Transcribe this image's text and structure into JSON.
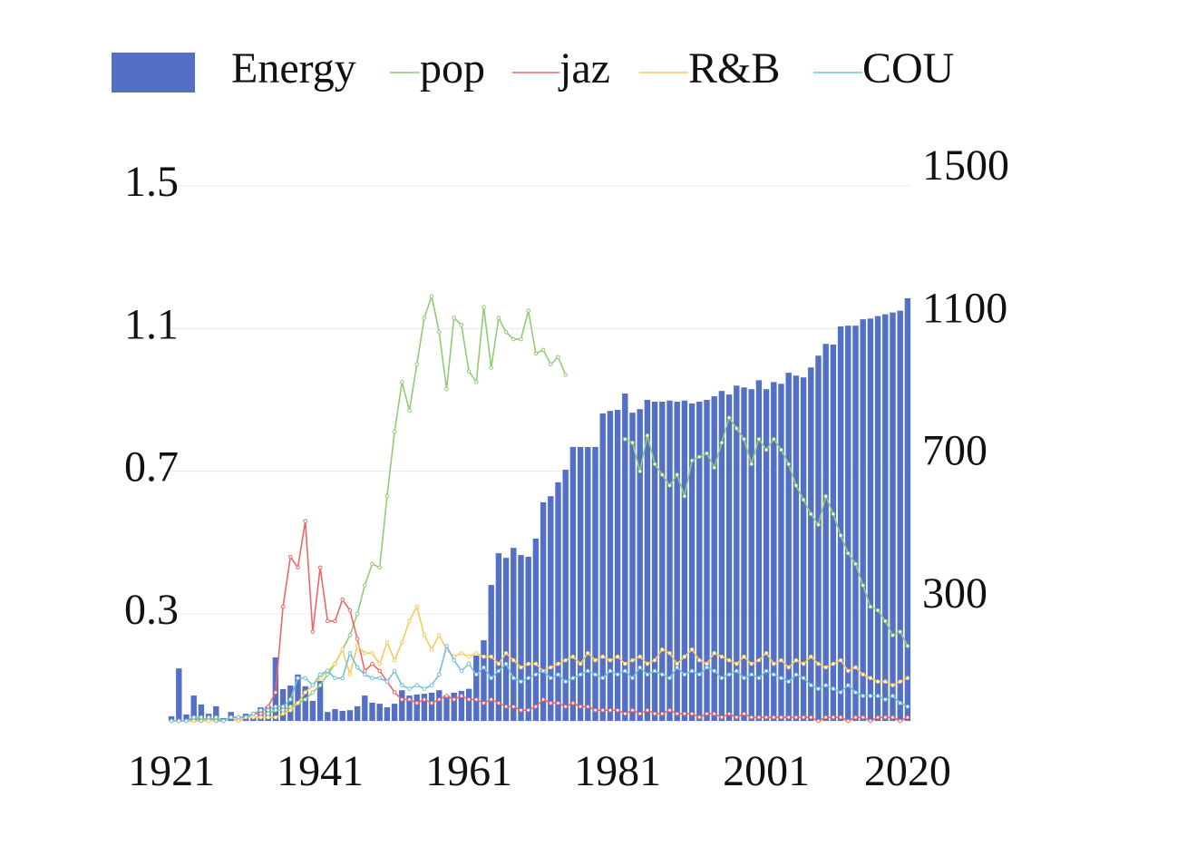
{
  "chart_data": {
    "type": "combo",
    "x": [
      1921,
      1922,
      1923,
      1924,
      1925,
      1926,
      1927,
      1928,
      1929,
      1930,
      1931,
      1932,
      1933,
      1934,
      1935,
      1936,
      1937,
      1938,
      1939,
      1940,
      1941,
      1942,
      1943,
      1944,
      1945,
      1946,
      1947,
      1948,
      1949,
      1950,
      1951,
      1952,
      1953,
      1954,
      1955,
      1956,
      1957,
      1958,
      1959,
      1960,
      1961,
      1962,
      1963,
      1964,
      1965,
      1966,
      1967,
      1968,
      1969,
      1970,
      1971,
      1972,
      1973,
      1974,
      1975,
      1976,
      1977,
      1978,
      1979,
      1980,
      1981,
      1982,
      1983,
      1984,
      1985,
      1986,
      1987,
      1988,
      1989,
      1990,
      1991,
      1992,
      1993,
      1994,
      1995,
      1996,
      1997,
      1998,
      1999,
      2000,
      2001,
      2002,
      2003,
      2004,
      2005,
      2006,
      2007,
      2008,
      2009,
      2010,
      2011,
      2012,
      2013,
      2014,
      2015,
      2016,
      2017,
      2018,
      2019,
      2020
    ],
    "xlim": [
      1920.5,
      2020.5
    ],
    "xticks": [
      1921,
      1941,
      1961,
      1981,
      2001,
      2020
    ],
    "ylim": [
      0,
      1.5
    ],
    "yticks": [
      0.3,
      0.7,
      1.1,
      1.5
    ],
    "y2lim": [
      0,
      1500
    ],
    "y2ticks": [
      300,
      700,
      1100,
      1500
    ],
    "grid": true,
    "legend": "top",
    "series": [
      {
        "name": "Energy",
        "type": "bar",
        "axis": "y2",
        "color": "#5470c6",
        "values": [
          13,
          147,
          18,
          71,
          46,
          20,
          41,
          8,
          25,
          5,
          20,
          8,
          38,
          41,
          178,
          89,
          99,
          130,
          97,
          56,
          112,
          25,
          33,
          28,
          30,
          41,
          71,
          51,
          48,
          38,
          48,
          86,
          71,
          74,
          76,
          79,
          86,
          71,
          79,
          84,
          90,
          183,
          226,
          381,
          470,
          457,
          485,
          465,
          460,
          511,
          613,
          630,
          669,
          704,
          768,
          768,
          768,
          768,
          862,
          869,
          872,
          918,
          864,
          874,
          900,
          895,
          895,
          898,
          895,
          898,
          890,
          895,
          900,
          910,
          925,
          915,
          940,
          935,
          930,
          955,
          930,
          950,
          945,
          976,
          968,
          963,
          991,
          1024,
          1057,
          1055,
          1106,
          1108,
          1108,
          1126,
          1128,
          1135,
          1140,
          1145,
          1150,
          1185
        ]
      },
      {
        "name": "pop",
        "type": "line",
        "color": "#91cc75",
        "values": [
          0,
          0,
          0,
          0.01,
          0.01,
          0,
          0.01,
          0,
          0.01,
          0,
          0.01,
          0.02,
          0.02,
          0.02,
          0.03,
          0.03,
          0.04,
          0.05,
          0.06,
          0.08,
          0.1,
          0.13,
          0.16,
          0.2,
          0.24,
          0.3,
          0.38,
          0.44,
          0.43,
          0.63,
          0.81,
          0.95,
          0.87,
          1.0,
          1.13,
          1.19,
          1.09,
          0.93,
          1.13,
          1.11,
          0.98,
          0.95,
          1.16,
          0.99,
          1.13,
          1.09,
          1.07,
          1.07,
          1.15,
          1.03,
          1.04,
          1.0,
          1.02,
          0.97,
          null,
          null,
          null,
          null,
          null,
          null,
          null,
          0.79,
          0.78,
          0.7,
          0.8,
          0.72,
          0.69,
          0.66,
          0.69,
          0.63,
          0.73,
          0.74,
          0.75,
          0.71,
          0.78,
          0.85,
          0.82,
          0.79,
          0.72,
          0.79,
          0.76,
          0.79,
          0.76,
          0.72,
          0.66,
          0.62,
          0.58,
          0.55,
          0.63,
          0.58,
          0.52,
          0.47,
          0.44,
          0.38,
          0.32,
          0.31,
          0.28,
          0.24,
          0.25,
          0.21
        ]
      },
      {
        "name": "jaz",
        "type": "line",
        "color": "#ee6666",
        "values": [
          0,
          0,
          0,
          0,
          0,
          0.01,
          0,
          0,
          0.01,
          0.01,
          0.01,
          0.02,
          0.02,
          0.04,
          0.08,
          0.32,
          0.46,
          0.43,
          0.56,
          0.25,
          0.43,
          0.28,
          0.28,
          0.34,
          0.31,
          0.23,
          0.14,
          0.16,
          0.14,
          0.11,
          0.08,
          0.06,
          0.06,
          0.05,
          0.06,
          0.05,
          0.06,
          0.07,
          0.06,
          0.07,
          0.06,
          0.06,
          0.05,
          0.06,
          0.05,
          0.04,
          0.04,
          0.03,
          0.03,
          0.04,
          0.06,
          0.05,
          0.05,
          0.04,
          0.05,
          0.04,
          0.04,
          0.03,
          0.03,
          0.03,
          0.03,
          0.02,
          0.03,
          0.02,
          0.03,
          0.02,
          0.02,
          0.03,
          0.02,
          0.02,
          0.02,
          0.01,
          0.02,
          0.02,
          0.01,
          0.02,
          0.01,
          0.02,
          0.01,
          0.01,
          0.01,
          0.01,
          0.01,
          0.01,
          0.01,
          0.01,
          0.01,
          0,
          0.01,
          0.01,
          0.01,
          0,
          0.01,
          0.01,
          0,
          0.01,
          0.01,
          0.01,
          0,
          0.01
        ]
      },
      {
        "name": "R&B",
        "type": "line",
        "color": "#fac858",
        "values": [
          0,
          0,
          0,
          0,
          0,
          0,
          0,
          0,
          0.01,
          0,
          0.01,
          0.01,
          0.01,
          0.01,
          0.01,
          0.02,
          0.03,
          0.05,
          0.08,
          0.1,
          0.12,
          0.14,
          0.16,
          0.2,
          0.13,
          0.21,
          0.19,
          0.19,
          0.16,
          0.22,
          0.17,
          0.22,
          0.28,
          0.32,
          0.24,
          0.2,
          0.24,
          0.2,
          0.18,
          0.19,
          0.18,
          0.19,
          0.18,
          0.18,
          0.16,
          0.19,
          0.17,
          0.15,
          0.16,
          0.16,
          0.14,
          0.15,
          0.16,
          0.17,
          0.18,
          0.16,
          0.19,
          0.17,
          0.18,
          0.17,
          0.18,
          0.16,
          0.17,
          0.18,
          0.16,
          0.17,
          0.2,
          0.19,
          0.16,
          0.18,
          0.2,
          0.17,
          0.16,
          0.19,
          0.18,
          0.17,
          0.16,
          0.18,
          0.16,
          0.17,
          0.19,
          0.16,
          0.17,
          0.15,
          0.17,
          0.16,
          0.18,
          0.16,
          0.15,
          0.16,
          0.17,
          0.14,
          0.15,
          0.13,
          0.12,
          0.11,
          0.11,
          0.1,
          0.11,
          0.12
        ]
      },
      {
        "name": "COU",
        "type": "line",
        "color": "#73c0de",
        "values": [
          0,
          0,
          0,
          0.01,
          0,
          0.01,
          0,
          0,
          0.01,
          0.01,
          0.01,
          0.02,
          0.03,
          0.03,
          0.04,
          0.04,
          0.06,
          0.12,
          0.12,
          0.1,
          0.13,
          0.14,
          0.12,
          0.12,
          0.19,
          0.15,
          0.13,
          0.12,
          0.12,
          0.11,
          0.14,
          0.1,
          0.09,
          0.1,
          0.09,
          0.1,
          0.13,
          0.21,
          0.17,
          0.14,
          0.16,
          0.13,
          0.15,
          0.12,
          0.14,
          0.16,
          0.12,
          0.11,
          0.12,
          0.13,
          0.14,
          0.12,
          0.13,
          0.11,
          0.12,
          0.13,
          0.14,
          0.13,
          0.12,
          0.14,
          0.13,
          0.14,
          0.12,
          0.15,
          0.13,
          0.14,
          0.13,
          0.12,
          0.15,
          0.13,
          0.14,
          0.13,
          0.15,
          0.14,
          0.12,
          0.13,
          0.14,
          0.12,
          0.13,
          0.12,
          0.14,
          0.13,
          0.12,
          0.11,
          0.13,
          0.12,
          0.1,
          0.09,
          0.1,
          0.09,
          0.08,
          0.1,
          0.08,
          0.07,
          0.07,
          0.07,
          0.06,
          0.07,
          0.05,
          0.04
        ]
      }
    ]
  }
}
